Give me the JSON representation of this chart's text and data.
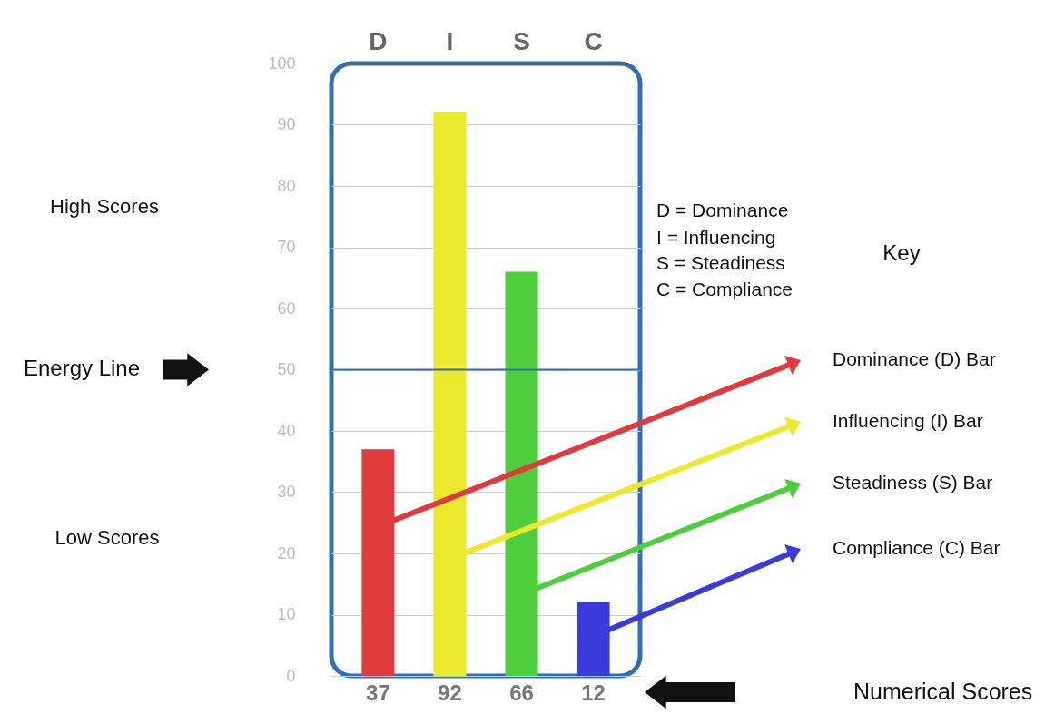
{
  "chart_data": {
    "type": "bar",
    "categories": [
      "D",
      "I",
      "S",
      "C"
    ],
    "values": [
      37,
      92,
      66,
      12
    ],
    "colors": [
      "#e0393e",
      "#ece82c",
      "#4ccf3a",
      "#3b3bdc"
    ],
    "data_labels": true,
    "ylim": [
      0,
      100
    ],
    "yticks": [
      0,
      10,
      20,
      30,
      40,
      50,
      60,
      70,
      80,
      90,
      100
    ],
    "grid": "y",
    "ref_lines": [
      {
        "axis": "y",
        "value": 50,
        "color": "#2f6fb5"
      }
    ],
    "annotations": [
      "High Scores",
      "Low Scores",
      "D = Dominance",
      "I = Influencing",
      "S = Steadiness",
      "C = Compliance",
      "Key",
      "Dominance (D) Bar",
      "Influencing (I) Bar",
      "Steadiness (S) Bar",
      "Compliance (C) Bar",
      "Numerical Scores",
      "Energy Line"
    ]
  }
}
